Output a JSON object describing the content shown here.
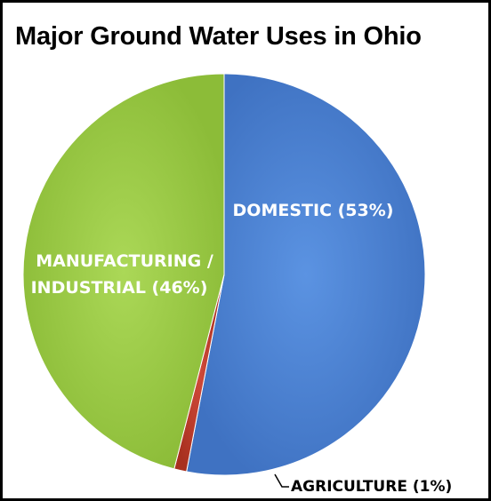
{
  "chart_data": {
    "type": "pie",
    "title": "Major Ground Water Uses in Ohio",
    "slices": [
      {
        "label": "DOMESTIC (53%)",
        "value": 53,
        "color": "#4a7fd0",
        "label_color": "#ffffff"
      },
      {
        "label": "AGRICULTURE (1%)",
        "value": 1,
        "color": "#c0392b",
        "label_color": "#000000"
      },
      {
        "label": "MANUFACTURING / INDUSTRIAL  (46%)",
        "value": 46,
        "color": "#9bcb45",
        "label_color": "#ffffff"
      }
    ],
    "legend": "none",
    "label_style": "data labels on slices, agriculture label outside with leader line"
  }
}
